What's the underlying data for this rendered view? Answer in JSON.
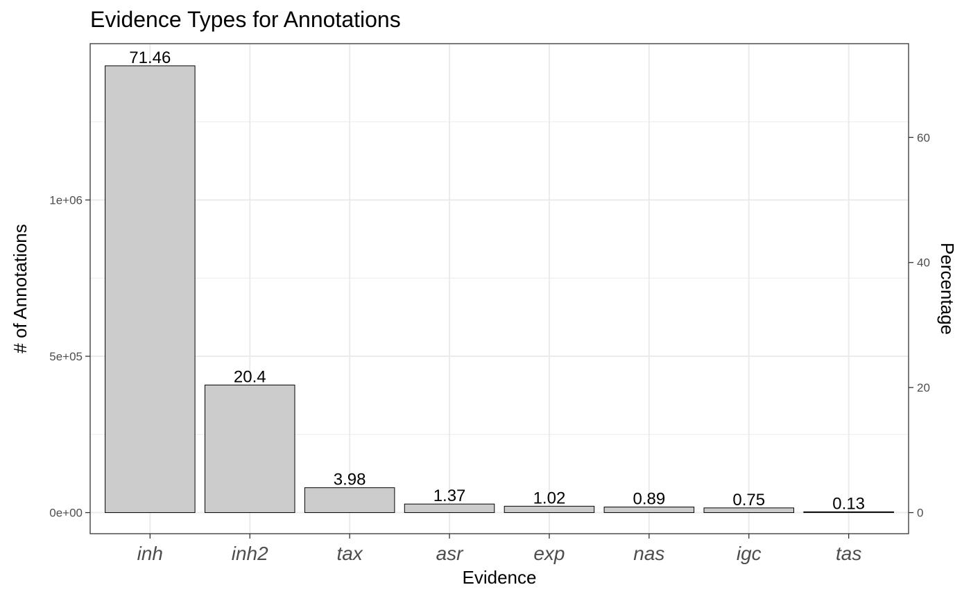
{
  "chart_data": {
    "type": "bar",
    "title": "Evidence Types for Annotations",
    "xlabel": "Evidence",
    "ylabel": "# of Annotations",
    "y2label": "Percentage",
    "categories": [
      "inh",
      "inh2",
      "tax",
      "asr",
      "exp",
      "nas",
      "igc",
      "tas"
    ],
    "values": [
      1429200,
      408000,
      79600,
      27400,
      20400,
      17800,
      15000,
      2600
    ],
    "data_labels": [
      "71.46",
      "20.4",
      "3.98",
      "1.37",
      "1.02",
      "0.89",
      "0.75",
      "0.13"
    ],
    "ylim": [
      -67500,
      1500000
    ],
    "yticks": [
      0,
      500000,
      1000000
    ],
    "ytick_labels": [
      "0e+00",
      "5e+05",
      "1e+06"
    ],
    "y2lim": [
      -3.375,
      75
    ],
    "y2ticks": [
      0,
      20,
      40,
      60
    ],
    "y2tick_labels": [
      "0",
      "20",
      "40",
      "60"
    ],
    "bar_fill": "#cccccc",
    "bar_stroke": "#000000",
    "grid_color": "#ebebeb",
    "grid": true,
    "legend": "none"
  }
}
